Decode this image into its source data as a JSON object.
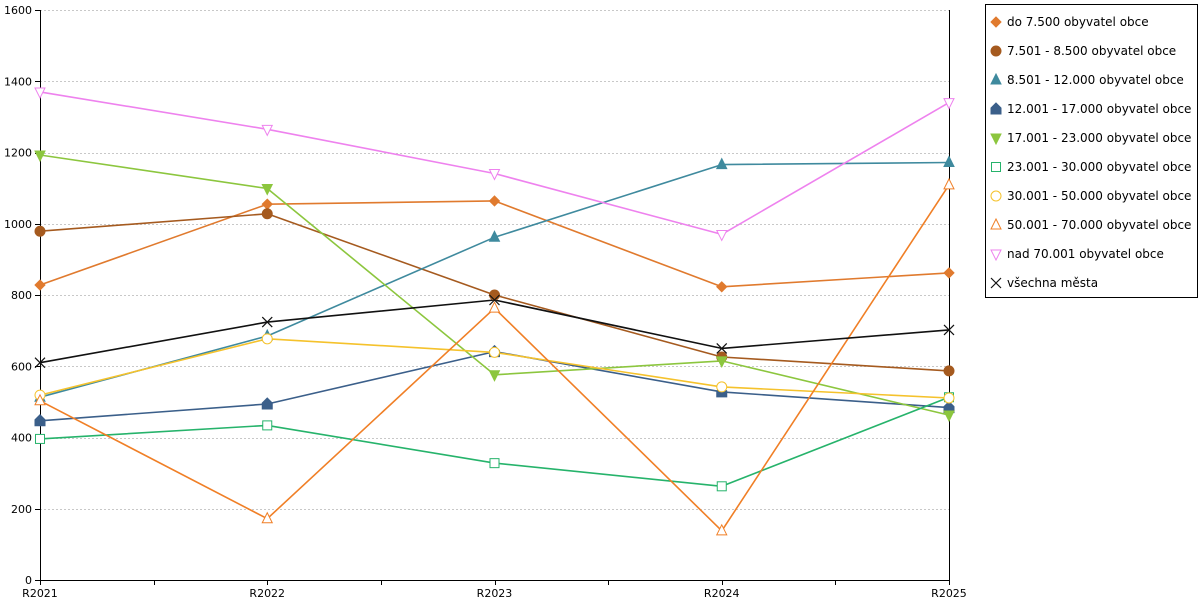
{
  "chart_data": {
    "type": "line",
    "title": "",
    "xlabel": "",
    "ylabel": "",
    "categories": [
      "R2021",
      "R2022",
      "R2023",
      "R2024",
      "R2025"
    ],
    "ylim": [
      0,
      1600
    ],
    "yticks": [
      0,
      200,
      400,
      600,
      800,
      1000,
      1200,
      1400,
      1600
    ],
    "grid": true,
    "legend_position": "right-top",
    "series": [
      {
        "name": "do 7.500 obyvatel obce",
        "values": [
          828,
          1055,
          1064,
          823,
          862
        ],
        "color": "#e07a2e",
        "marker": "diamond-filled"
      },
      {
        "name": "7.501 - 8.500 obyvatel obce",
        "values": [
          979,
          1028,
          800,
          626,
          587
        ],
        "color": "#a55a1f",
        "marker": "circle-filled"
      },
      {
        "name": "8.501 - 12.000 obyvatel obce",
        "values": [
          513,
          685,
          962,
          1166,
          1172
        ],
        "color": "#3f8a9e",
        "marker": "triangle-up-filled"
      },
      {
        "name": "12.001 - 17.000 obyvatel obce",
        "values": [
          447,
          494,
          641,
          528,
          484
        ],
        "color": "#3b5f8a",
        "marker": "pentagon-filled"
      },
      {
        "name": "17.001 - 23.000 obyvatel obce",
        "values": [
          1193,
          1099,
          576,
          615,
          463
        ],
        "color": "#8cc63e",
        "marker": "triangle-down-filled"
      },
      {
        "name": "23.001 - 30.000 obyvatel obce",
        "values": [
          396,
          434,
          328,
          263,
          513
        ],
        "color": "#26b36b",
        "marker": "square-open"
      },
      {
        "name": "30.001 - 50.000 obyvatel obce",
        "values": [
          519,
          677,
          639,
          542,
          511
        ],
        "color": "#f5c22c",
        "marker": "circle-open"
      },
      {
        "name": "50.001 - 70.000 obyvatel obce",
        "values": [
          503,
          172,
          763,
          138,
          1109
        ],
        "color": "#f07f26",
        "marker": "triangle-up-open"
      },
      {
        "name": "nad 70.001 obyvatel obce",
        "values": [
          1370,
          1265,
          1141,
          970,
          1340
        ],
        "color": "#ee82ee",
        "marker": "triangle-down-open"
      },
      {
        "name": "všechna města",
        "values": [
          610,
          724,
          786,
          650,
          702
        ],
        "color": "#111111",
        "marker": "x"
      }
    ]
  }
}
